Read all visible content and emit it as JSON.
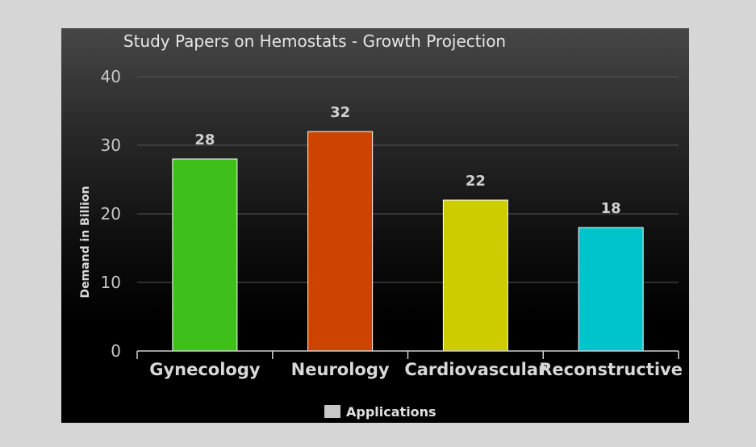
{
  "chart_data": {
    "type": "bar",
    "title": "Study Papers on Hemostats - Growth Projection",
    "ylabel": "Demand in Billion",
    "xlabel": "",
    "categories": [
      "Gynecology",
      "Neurology",
      "Cardiovascular",
      "Reconstructive"
    ],
    "series": [
      {
        "name": "Applications",
        "values": [
          28,
          32,
          22,
          18
        ],
        "colors": [
          "#3fbf1a",
          "#cc4400",
          "#cccc00",
          "#00c4cc"
        ]
      }
    ],
    "ylim": [
      0,
      40
    ],
    "yticks": [
      0,
      10,
      20,
      30,
      40
    ],
    "grid": true,
    "legend_position": "bottom-center",
    "legend_color": "#c8c8c8",
    "background": "#000000"
  }
}
